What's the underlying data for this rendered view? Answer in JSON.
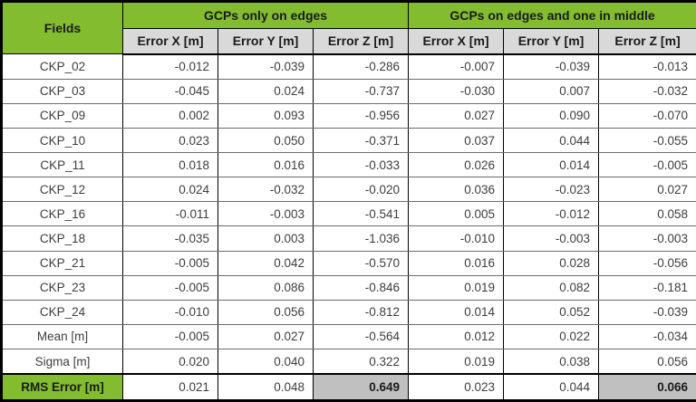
{
  "colors": {
    "header_green": "#83bc2e",
    "subheader_gray": "#d9d9d9",
    "rms_highlight_gray": "#c0c0c0",
    "border_black": "#000000",
    "row_divider_gray": "#6b6b6b"
  },
  "chart_data": {
    "type": "table",
    "fields_header": "Fields",
    "group_headers": [
      "GCPs only on edges",
      "GCPs on edges and one in middle"
    ],
    "sub_headers": [
      "Error X [m]",
      "Error Y [m]",
      "Error Z [m]",
      "Error X [m]",
      "Error Y [m]",
      "Error Z [m]"
    ],
    "emphasized_value_columns": [
      2,
      5
    ],
    "rows": [
      {
        "label": "CKP_02",
        "emphasis": false,
        "values": [
          "-0.012",
          "-0.039",
          "-0.286",
          "-0.007",
          "-0.039",
          "-0.013"
        ]
      },
      {
        "label": "CKP_03",
        "emphasis": false,
        "values": [
          "-0.045",
          "0.024",
          "-0.737",
          "-0.030",
          "0.007",
          "-0.032"
        ]
      },
      {
        "label": "CKP_09",
        "emphasis": false,
        "values": [
          "0.002",
          "0.093",
          "-0.956",
          "0.027",
          "0.090",
          "-0.070"
        ]
      },
      {
        "label": "CKP_10",
        "emphasis": false,
        "values": [
          "0.023",
          "0.050",
          "-0.371",
          "0.037",
          "0.044",
          "-0.055"
        ]
      },
      {
        "label": "CKP_11",
        "emphasis": false,
        "values": [
          "0.018",
          "0.016",
          "-0.033",
          "0.026",
          "0.014",
          "-0.005"
        ]
      },
      {
        "label": "CKP_12",
        "emphasis": false,
        "values": [
          "0.024",
          "-0.032",
          "-0.020",
          "0.036",
          "-0.023",
          "0.027"
        ]
      },
      {
        "label": "CKP_16",
        "emphasis": false,
        "values": [
          "-0.011",
          "-0.003",
          "-0.541",
          "0.005",
          "-0.012",
          "0.058"
        ]
      },
      {
        "label": "CKP_18",
        "emphasis": false,
        "values": [
          "-0.035",
          "0.003",
          "-1.036",
          "-0.010",
          "-0.003",
          "-0.003"
        ]
      },
      {
        "label": "CKP_21",
        "emphasis": false,
        "values": [
          "-0.005",
          "0.042",
          "-0.570",
          "0.016",
          "0.028",
          "-0.056"
        ]
      },
      {
        "label": "CKP_23",
        "emphasis": false,
        "values": [
          "-0.005",
          "0.086",
          "-0.846",
          "0.019",
          "0.082",
          "-0.181"
        ]
      },
      {
        "label": "CKP_24",
        "emphasis": false,
        "values": [
          "-0.010",
          "0.056",
          "-0.812",
          "0.014",
          "0.052",
          "-0.039"
        ]
      },
      {
        "label": "Mean [m]",
        "emphasis": false,
        "values": [
          "-0.005",
          "0.027",
          "-0.564",
          "0.012",
          "0.022",
          "-0.034"
        ]
      },
      {
        "label": "Sigma [m]",
        "emphasis": false,
        "values": [
          "0.020",
          "0.040",
          "0.322",
          "0.019",
          "0.038",
          "0.056"
        ]
      },
      {
        "label": "RMS Error [m]",
        "emphasis": true,
        "values": [
          "0.021",
          "0.048",
          "0.649",
          "0.023",
          "0.044",
          "0.066"
        ]
      }
    ]
  }
}
